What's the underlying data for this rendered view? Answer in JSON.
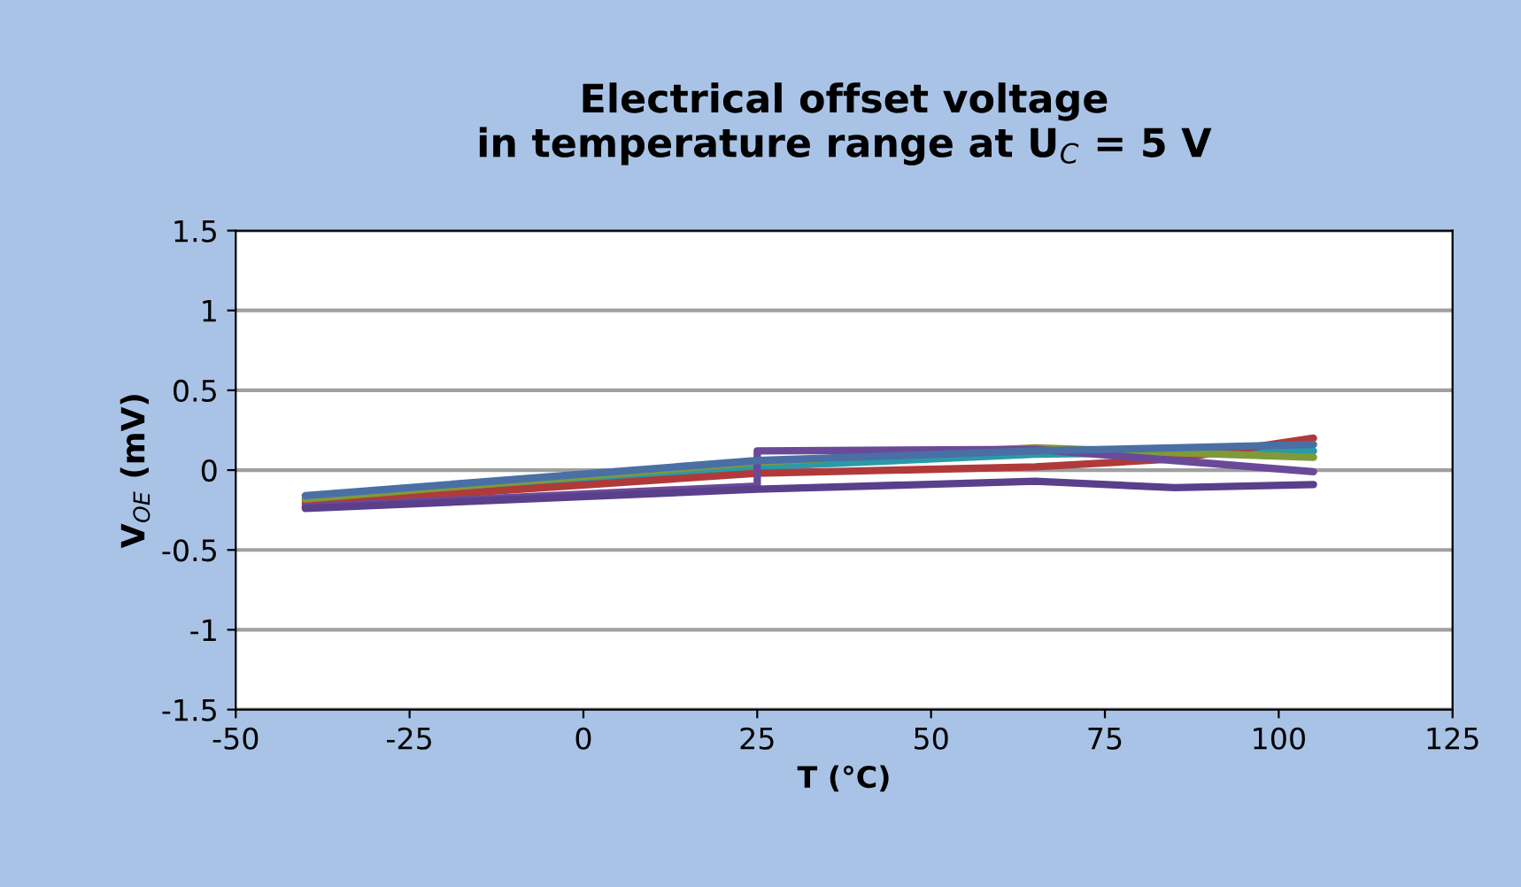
{
  "chart_data": {
    "type": "line",
    "title": "Electrical offset voltage\nin temperature range at U$_{C}$ = 5 V",
    "xlabel": "T (°C)",
    "ylabel": "V$_{OE}$ (mV)",
    "x": [
      -40,
      25,
      65,
      85,
      105
    ],
    "series": [
      {
        "color": "#2a9aa8",
        "values": [
          -0.19,
          0.02,
          0.1,
          0.11,
          0.12
        ]
      },
      {
        "color": "#b03a3a",
        "values": [
          -0.21,
          -0.02,
          0.02,
          0.07,
          0.2
        ]
      },
      {
        "color": "#7f9a3a",
        "values": [
          -0.18,
          0.05,
          0.14,
          0.11,
          0.08
        ]
      },
      {
        "color": "#6a4a98",
        "x": [
          -40,
          25,
          25,
          65,
          85,
          105
        ],
        "values": [
          -0.23,
          -0.1,
          0.12,
          0.13,
          0.06,
          -0.01
        ]
      },
      {
        "color": "#5a3f8a",
        "values": [
          -0.24,
          -0.12,
          -0.07,
          -0.11,
          -0.09
        ]
      },
      {
        "color": "#4a6fa5",
        "values": [
          -0.16,
          0.06,
          0.12,
          0.14,
          0.16
        ]
      }
    ],
    "xlim": [
      -50,
      125
    ],
    "xticks": [
      -50,
      -25,
      0,
      25,
      50,
      75,
      100,
      125
    ],
    "ylim": [
      -1.5,
      1.5
    ],
    "yticks": [
      -1.5,
      -1,
      -0.5,
      0,
      0.5,
      1,
      1.5
    ],
    "grid": "y",
    "legend": false,
    "marker": "none",
    "line_style": "solid"
  }
}
